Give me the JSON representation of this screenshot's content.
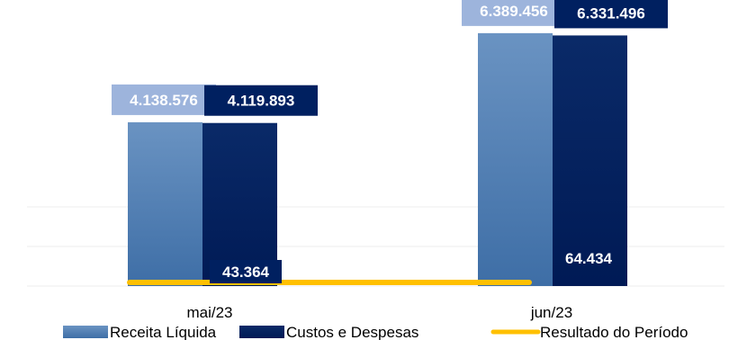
{
  "chart_data": {
    "type": "bar",
    "categories": [
      "mai/23",
      "jun/23"
    ],
    "series": [
      {
        "name": "Receita Líquida",
        "type": "bar",
        "values": [
          4138576,
          6389456
        ],
        "labels": [
          "4.138.576",
          "6.389.456"
        ],
        "color": "#5b87b8"
      },
      {
        "name": "Custos e Despesas",
        "type": "bar",
        "values": [
          4119893,
          6331496
        ],
        "labels": [
          "4.119.893",
          "6.331.496"
        ],
        "color": "#002060"
      },
      {
        "name": "Resultado do Período",
        "type": "line",
        "values": [
          43364,
          64434
        ],
        "labels": [
          "43.364",
          "64.434"
        ],
        "color": "#ffc000"
      }
    ],
    "ylim": [
      0,
      7000000
    ],
    "grid": true,
    "legend_position": "bottom"
  }
}
